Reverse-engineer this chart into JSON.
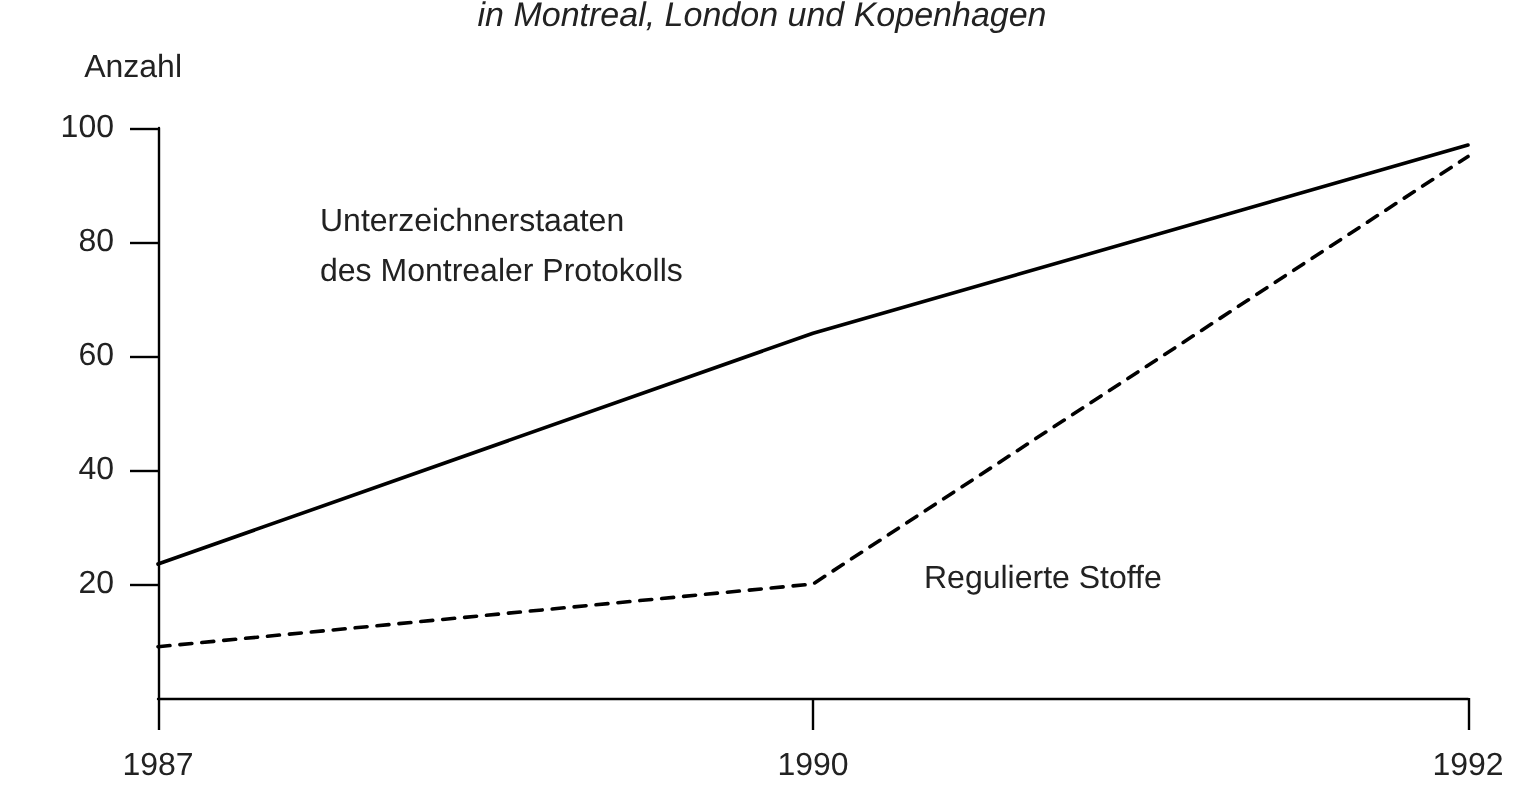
{
  "chart_data": {
    "type": "line",
    "title": "in Montreal, London und Kopenhagen",
    "ylabel": "Anzahl",
    "categories": [
      "1987",
      "1990",
      "1992"
    ],
    "series": [
      {
        "name": "Unterzeichnerstaaten\ndes Montrealer Protokolls",
        "color": "#000000",
        "values": [
          23.5,
          64,
          97
        ],
        "line_style": "solid"
      },
      {
        "name": "Regulierte Stoffe",
        "color": "#000000",
        "values": [
          9,
          20,
          95
        ],
        "line_style": "dashed"
      }
    ],
    "ylim": [
      0,
      100
    ],
    "yticks": [
      20,
      40,
      60,
      80,
      100
    ],
    "grid": false,
    "legend": false,
    "marker": "none"
  }
}
